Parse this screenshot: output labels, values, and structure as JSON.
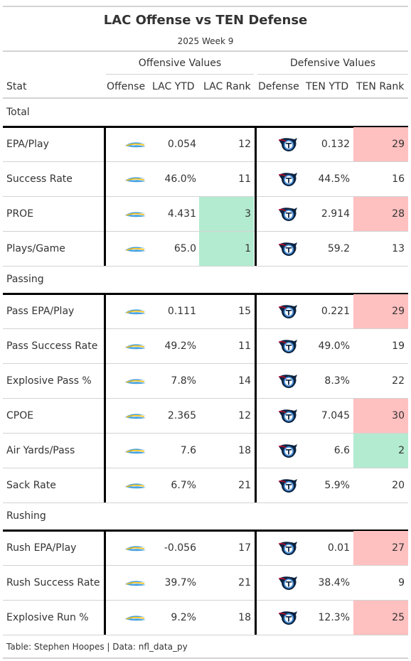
{
  "title": "LAC Offense vs TEN Defense",
  "subtitle": "2025 Week 9",
  "spanners": {
    "offense": "Offensive Values",
    "defense": "Defensive Values"
  },
  "columns": {
    "stat": "Stat",
    "offense": "Offense",
    "lac_ytd": "LAC YTD",
    "lac_rank": "LAC Rank",
    "defense": "Defense",
    "ten_ytd": "TEN YTD",
    "ten_rank": "TEN Rank"
  },
  "colors": {
    "good": "#b3ebd0",
    "bad": "#ffc0c0",
    "chargers_blue": "#4aa3df",
    "chargers_gold": "#ffc20e",
    "titans_navy": "#0c2340",
    "titans_red": "#c8102e"
  },
  "icons": {
    "offense": "chargers-logo-icon",
    "defense": "titans-logo-icon"
  },
  "groups": [
    {
      "label": "Total",
      "rows": [
        {
          "stat": "EPA/Play",
          "lac_ytd": "0.054",
          "lac_rank": "12",
          "lac_hl": "",
          "ten_ytd": "0.132",
          "ten_rank": "29",
          "ten_hl": "bad"
        },
        {
          "stat": "Success Rate",
          "lac_ytd": "46.0%",
          "lac_rank": "11",
          "lac_hl": "",
          "ten_ytd": "44.5%",
          "ten_rank": "16",
          "ten_hl": ""
        },
        {
          "stat": "PROE",
          "lac_ytd": "4.431",
          "lac_rank": "3",
          "lac_hl": "good",
          "ten_ytd": "2.914",
          "ten_rank": "28",
          "ten_hl": "bad"
        },
        {
          "stat": "Plays/Game",
          "lac_ytd": "65.0",
          "lac_rank": "1",
          "lac_hl": "good",
          "ten_ytd": "59.2",
          "ten_rank": "13",
          "ten_hl": ""
        }
      ]
    },
    {
      "label": "Passing",
      "rows": [
        {
          "stat": "Pass EPA/Play",
          "lac_ytd": "0.111",
          "lac_rank": "15",
          "lac_hl": "",
          "ten_ytd": "0.221",
          "ten_rank": "29",
          "ten_hl": "bad"
        },
        {
          "stat": "Pass Success Rate",
          "lac_ytd": "49.2%",
          "lac_rank": "11",
          "lac_hl": "",
          "ten_ytd": "49.0%",
          "ten_rank": "19",
          "ten_hl": ""
        },
        {
          "stat": "Explosive Pass %",
          "lac_ytd": "7.8%",
          "lac_rank": "14",
          "lac_hl": "",
          "ten_ytd": "8.3%",
          "ten_rank": "22",
          "ten_hl": ""
        },
        {
          "stat": "CPOE",
          "lac_ytd": "2.365",
          "lac_rank": "12",
          "lac_hl": "",
          "ten_ytd": "7.045",
          "ten_rank": "30",
          "ten_hl": "bad"
        },
        {
          "stat": "Air Yards/Pass",
          "lac_ytd": "7.6",
          "lac_rank": "18",
          "lac_hl": "",
          "ten_ytd": "6.6",
          "ten_rank": "2",
          "ten_hl": "good"
        },
        {
          "stat": "Sack Rate",
          "lac_ytd": "6.7%",
          "lac_rank": "21",
          "lac_hl": "",
          "ten_ytd": "5.9%",
          "ten_rank": "20",
          "ten_hl": ""
        }
      ]
    },
    {
      "label": "Rushing",
      "rows": [
        {
          "stat": "Rush EPA/Play",
          "lac_ytd": "-0.056",
          "lac_rank": "17",
          "lac_hl": "",
          "ten_ytd": "0.01",
          "ten_rank": "27",
          "ten_hl": "bad"
        },
        {
          "stat": "Rush Success Rate",
          "lac_ytd": "39.7%",
          "lac_rank": "21",
          "lac_hl": "",
          "ten_ytd": "38.4%",
          "ten_rank": "9",
          "ten_hl": ""
        },
        {
          "stat": "Explosive Run %",
          "lac_ytd": "9.2%",
          "lac_rank": "18",
          "lac_hl": "",
          "ten_ytd": "12.3%",
          "ten_rank": "25",
          "ten_hl": "bad"
        }
      ]
    }
  ],
  "footnote": "Table: Stephen Hoopes | Data: nfl_data_py"
}
